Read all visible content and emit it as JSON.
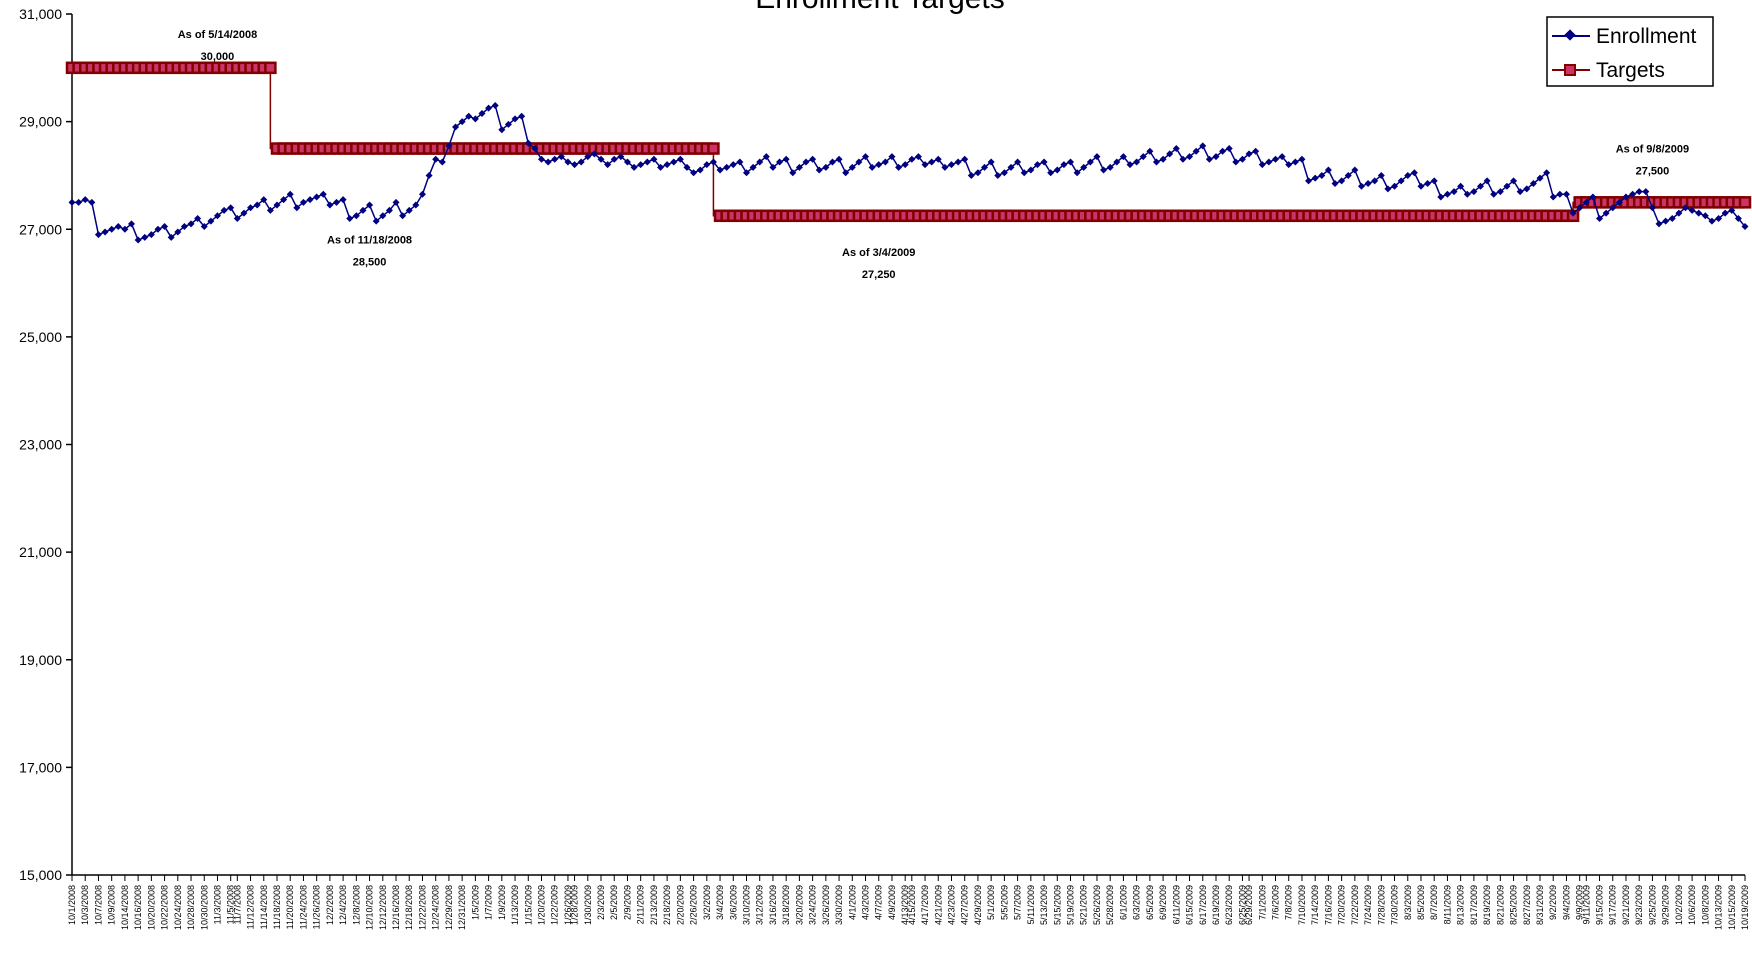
{
  "chart_data": {
    "type": "line",
    "title": "Enrollment Targets",
    "xlabel": "",
    "ylabel": "",
    "ylim": [
      15000,
      31000
    ],
    "yticks": [
      "15,000",
      "17,000",
      "19,000",
      "21,000",
      "23,000",
      "25,000",
      "27,000",
      "29,000",
      "31,000"
    ],
    "grid": false,
    "legend_position": "top-right",
    "x_tick_labels": [
      "10/1/2008",
      "10/3/2008",
      "10/7/2008",
      "10/9/2008",
      "10/14/2008",
      "10/16/2008",
      "10/20/2008",
      "10/22/2008",
      "10/24/2008",
      "10/28/2008",
      "10/30/2008",
      "11/3/2008",
      "11/5/2008",
      "11/7/2008",
      "11/12/2008",
      "11/14/2008",
      "11/18/2008",
      "11/20/2008",
      "11/24/2008",
      "11/26/2008",
      "12/2/2008",
      "12/4/2008",
      "12/8/2008",
      "12/10/2008",
      "12/12/2008",
      "12/16/2008",
      "12/18/2008",
      "12/22/2008",
      "12/24/2008",
      "12/29/2008",
      "12/31/2008",
      "1/5/2009",
      "1/7/2009",
      "1/9/2009",
      "1/13/2009",
      "1/15/2009",
      "1/20/2009",
      "1/22/2009",
      "1/26/2009",
      "1/28/2009",
      "1/30/2009",
      "2/3/2009",
      "2/5/2009",
      "2/9/2009",
      "2/11/2009",
      "2/13/2009",
      "2/18/2009",
      "2/20/2009",
      "2/26/2009",
      "3/2/2009",
      "3/4/2009",
      "3/6/2009",
      "3/10/2009",
      "3/12/2009",
      "3/16/2009",
      "3/18/2009",
      "3/20/2009",
      "3/24/2009",
      "3/26/2009",
      "3/30/2009",
      "4/1/2009",
      "4/3/2009",
      "4/7/2009",
      "4/9/2009",
      "4/13/2009",
      "4/15/2009",
      "4/17/2009",
      "4/21/2009",
      "4/23/2009",
      "4/27/2009",
      "4/29/2009",
      "5/1/2009",
      "5/5/2009",
      "5/7/2009",
      "5/11/2009",
      "5/13/2009",
      "5/15/2009",
      "5/19/2009",
      "5/21/2009",
      "5/26/2009",
      "5/28/2009",
      "6/1/2009",
      "6/3/2009",
      "6/5/2009",
      "6/9/2009",
      "6/11/2009",
      "6/15/2009",
      "6/17/2009",
      "6/19/2009",
      "6/23/2009",
      "6/25/2009",
      "6/29/2009",
      "7/1/2009",
      "7/6/2009",
      "7/8/2009",
      "7/10/2009",
      "7/14/2009",
      "7/16/2009",
      "7/20/2009",
      "7/22/2009",
      "7/24/2009",
      "7/28/2009",
      "7/30/2009",
      "8/3/2009",
      "8/5/2009",
      "8/7/2009",
      "8/11/2009",
      "8/13/2009",
      "8/17/2009",
      "8/19/2009",
      "8/21/2009",
      "8/25/2009",
      "8/27/2009",
      "8/31/2009",
      "9/2/2009",
      "9/4/2009",
      "9/9/2009",
      "9/11/2009",
      "9/15/2009",
      "9/17/2009",
      "9/21/2009",
      "9/23/2009",
      "9/25/2009",
      "9/29/2009",
      "10/2/2009",
      "10/6/2009",
      "10/8/2009",
      "10/13/2009",
      "10/15/2009",
      "10/19/2009"
    ],
    "series": [
      {
        "name": "Enrollment",
        "color": "#000080",
        "marker": "diamond",
        "values": [
          27500,
          27500,
          27550,
          27500,
          26900,
          26950,
          27000,
          27050,
          27000,
          27100,
          26800,
          26850,
          26900,
          27000,
          27050,
          26850,
          26950,
          27050,
          27100,
          27200,
          27050,
          27150,
          27250,
          27350,
          27400,
          27200,
          27300,
          27400,
          27450,
          27550,
          27350,
          27450,
          27550,
          27650,
          27400,
          27500,
          27550,
          27600,
          27650,
          27450,
          27500,
          27550,
          27200,
          27250,
          27350,
          27450,
          27150,
          27250,
          27350,
          27500,
          27250,
          27350,
          27450,
          27650,
          28000,
          28300,
          28250,
          28550,
          28900,
          29000,
          29100,
          29050,
          29150,
          29250,
          29300,
          28850,
          28950,
          29050,
          29100,
          28600,
          28500,
          28300,
          28250,
          28300,
          28350,
          28250,
          28200,
          28250,
          28350,
          28400,
          28300,
          28200,
          28300,
          28350,
          28250,
          28150,
          28200,
          28250,
          28300,
          28150,
          28200,
          28250,
          28300,
          28150,
          28050,
          28100,
          28200,
          28250,
          28100,
          28150,
          28200,
          28250,
          28050,
          28150,
          28250,
          28350,
          28150,
          28250,
          28300,
          28050,
          28150,
          28250,
          28300,
          28100,
          28150,
          28250,
          28300,
          28050,
          28150,
          28250,
          28350,
          28150,
          28200,
          28250,
          28350,
          28150,
          28200,
          28300,
          28350,
          28200,
          28250,
          28300,
          28150,
          28200,
          28250,
          28300,
          28000,
          28050,
          28150,
          28250,
          28000,
          28050,
          28150,
          28250,
          28050,
          28100,
          28200,
          28250,
          28050,
          28100,
          28200,
          28250,
          28050,
          28150,
          28250,
          28350,
          28100,
          28150,
          28250,
          28350,
          28200,
          28250,
          28350,
          28450,
          28250,
          28300,
          28400,
          28500,
          28300,
          28350,
          28450,
          28550,
          28300,
          28350,
          28450,
          28500,
          28250,
          28300,
          28400,
          28450,
          28200,
          28250,
          28300,
          28350,
          28200,
          28250,
          28300,
          27900,
          27950,
          28000,
          28100,
          27850,
          27900,
          28000,
          28100,
          27800,
          27850,
          27900,
          28000,
          27750,
          27800,
          27900,
          28000,
          28050,
          27800,
          27850,
          27900,
          27600,
          27650,
          27700,
          27800,
          27650,
          27700,
          27800,
          27900,
          27650,
          27700,
          27800,
          27900,
          27700,
          27750,
          27850,
          27950,
          28050,
          27600,
          27650,
          27650,
          27300,
          27400,
          27500,
          27600,
          27200,
          27300,
          27400,
          27500,
          27600,
          27650,
          27700,
          27700,
          27400,
          27100,
          27150,
          27200,
          27300,
          27400,
          27350,
          27300,
          27250,
          27150,
          27200,
          27300,
          27350,
          27200,
          27050
        ]
      },
      {
        "name": "Targets",
        "color": "#800000",
        "marker": "square",
        "step_changes": [
          {
            "start": "10/1/2008",
            "value": 30000
          },
          {
            "start": "11/18/2008",
            "value": 28500
          },
          {
            "start": "3/4/2009",
            "value": 27250
          },
          {
            "start": "9/9/2009",
            "value": 27500
          }
        ]
      }
    ],
    "annotations": [
      {
        "line1": "As of 5/14/2008",
        "line2": "30,000",
        "x_at": "11/3/2008",
        "value": 30000
      },
      {
        "line1": "As of 11/18/2008",
        "line2": "28,500",
        "x_at": "12/10/2008",
        "value": 28500
      },
      {
        "line1": "As of 3/4/2009",
        "line2": "27,250",
        "x_at": "4/7/2009",
        "value": 27250
      },
      {
        "line1": "As of 9/8/2009",
        "line2": "27,500",
        "x_at": "9/25/2009",
        "value": 27500
      }
    ]
  }
}
